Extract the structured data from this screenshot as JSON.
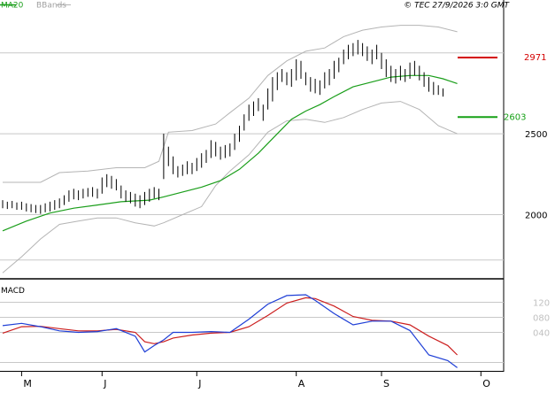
{
  "legend": {
    "ma_label": "MA20",
    "bands_label": "BBands",
    "copyright": "© TEC 27/9/2026 3:0 GMT"
  },
  "macd_panel": {
    "title": "MACD"
  },
  "levels": {
    "resistance_label": "2971",
    "support_label": "2603",
    "resistance_color": "#d40000",
    "support_color": "#16a116"
  },
  "price_axis": {
    "ticks": [
      "2500",
      "2000"
    ]
  },
  "macd_axis": {
    "ticks": [
      "120",
      "080",
      "040"
    ]
  },
  "months": [
    "M",
    "J",
    "J",
    "A",
    "S",
    "O"
  ],
  "colors": {
    "ma": "#1a9e1a",
    "bands": "#b4b4b4",
    "price_bars": "#000000",
    "macd": "#1f3fd6",
    "signal": "#cc1f1f",
    "grid": "#c8c8c8",
    "axis": "#000000"
  },
  "chart_data": [
    {
      "type": "line",
      "title": "",
      "ylim": [
        1620,
        3250
      ],
      "y_ticks": [
        2000,
        2500
      ],
      "levels": {
        "resistance": 2971,
        "support": 2603
      },
      "bars": [
        {
          "h": 2090,
          "l": 2040
        },
        {
          "h": 2080,
          "l": 2035
        },
        {
          "h": 2085,
          "l": 2040
        },
        {
          "h": 2075,
          "l": 2030
        },
        {
          "h": 2080,
          "l": 2030
        },
        {
          "h": 2070,
          "l": 2020
        },
        {
          "h": 2065,
          "l": 2015
        },
        {
          "h": 2060,
          "l": 2010
        },
        {
          "h": 2060,
          "l": 2005
        },
        {
          "h": 2070,
          "l": 2015
        },
        {
          "h": 2080,
          "l": 2020
        },
        {
          "h": 2090,
          "l": 2030
        },
        {
          "h": 2100,
          "l": 2040
        },
        {
          "h": 2120,
          "l": 2060
        },
        {
          "h": 2150,
          "l": 2080
        },
        {
          "h": 2160,
          "l": 2095
        },
        {
          "h": 2150,
          "l": 2090
        },
        {
          "h": 2160,
          "l": 2100
        },
        {
          "h": 2165,
          "l": 2110
        },
        {
          "h": 2170,
          "l": 2110
        },
        {
          "h": 2160,
          "l": 2100
        },
        {
          "h": 2230,
          "l": 2130
        },
        {
          "h": 2250,
          "l": 2170
        },
        {
          "h": 2240,
          "l": 2160
        },
        {
          "h": 2220,
          "l": 2150
        },
        {
          "h": 2180,
          "l": 2100
        },
        {
          "h": 2150,
          "l": 2080
        },
        {
          "h": 2140,
          "l": 2070
        },
        {
          "h": 2130,
          "l": 2050
        },
        {
          "h": 2120,
          "l": 2040
        },
        {
          "h": 2140,
          "l": 2060
        },
        {
          "h": 2160,
          "l": 2080
        },
        {
          "h": 2170,
          "l": 2100
        },
        {
          "h": 2160,
          "l": 2090
        },
        {
          "h": 2500,
          "l": 2220
        },
        {
          "h": 2420,
          "l": 2300
        },
        {
          "h": 2360,
          "l": 2250
        },
        {
          "h": 2300,
          "l": 2230
        },
        {
          "h": 2310,
          "l": 2240
        },
        {
          "h": 2330,
          "l": 2250
        },
        {
          "h": 2320,
          "l": 2250
        },
        {
          "h": 2350,
          "l": 2270
        },
        {
          "h": 2380,
          "l": 2290
        },
        {
          "h": 2400,
          "l": 2320
        },
        {
          "h": 2460,
          "l": 2350
        },
        {
          "h": 2450,
          "l": 2360
        },
        {
          "h": 2420,
          "l": 2340
        },
        {
          "h": 2430,
          "l": 2350
        },
        {
          "h": 2440,
          "l": 2360
        },
        {
          "h": 2500,
          "l": 2400
        },
        {
          "h": 2550,
          "l": 2450
        },
        {
          "h": 2620,
          "l": 2520
        },
        {
          "h": 2680,
          "l": 2580
        },
        {
          "h": 2700,
          "l": 2610
        },
        {
          "h": 2720,
          "l": 2640
        },
        {
          "h": 2680,
          "l": 2580
        },
        {
          "h": 2780,
          "l": 2650
        },
        {
          "h": 2850,
          "l": 2700
        },
        {
          "h": 2880,
          "l": 2770
        },
        {
          "h": 2900,
          "l": 2820
        },
        {
          "h": 2880,
          "l": 2800
        },
        {
          "h": 2900,
          "l": 2790
        },
        {
          "h": 2960,
          "l": 2830
        },
        {
          "h": 2950,
          "l": 2840
        },
        {
          "h": 2880,
          "l": 2800
        },
        {
          "h": 2850,
          "l": 2760
        },
        {
          "h": 2840,
          "l": 2750
        },
        {
          "h": 2830,
          "l": 2740
        },
        {
          "h": 2880,
          "l": 2780
        },
        {
          "h": 2900,
          "l": 2800
        },
        {
          "h": 2950,
          "l": 2840
        },
        {
          "h": 2970,
          "l": 2880
        },
        {
          "h": 3020,
          "l": 2930
        },
        {
          "h": 3050,
          "l": 2960
        },
        {
          "h": 3060,
          "l": 2980
        },
        {
          "h": 3080,
          "l": 2990
        },
        {
          "h": 3060,
          "l": 2980
        },
        {
          "h": 3040,
          "l": 2950
        },
        {
          "h": 3020,
          "l": 2930
        },
        {
          "h": 3050,
          "l": 2960
        },
        {
          "h": 3000,
          "l": 2900
        },
        {
          "h": 2960,
          "l": 2850
        },
        {
          "h": 2920,
          "l": 2820
        },
        {
          "h": 2900,
          "l": 2810
        },
        {
          "h": 2920,
          "l": 2830
        },
        {
          "h": 2900,
          "l": 2820
        },
        {
          "h": 2940,
          "l": 2840
        },
        {
          "h": 2950,
          "l": 2860
        },
        {
          "h": 2920,
          "l": 2830
        },
        {
          "h": 2880,
          "l": 2790
        },
        {
          "h": 2850,
          "l": 2760
        },
        {
          "h": 2820,
          "l": 2740
        },
        {
          "h": 2800,
          "l": 2740
        },
        {
          "h": 2780,
          "l": 2730
        }
      ],
      "ma20": [
        [
          0,
          1900
        ],
        [
          5,
          1960
        ],
        [
          10,
          2010
        ],
        [
          15,
          2040
        ],
        [
          20,
          2060
        ],
        [
          25,
          2080
        ],
        [
          28,
          2085
        ],
        [
          31,
          2090
        ],
        [
          34,
          2110
        ],
        [
          38,
          2140
        ],
        [
          42,
          2170
        ],
        [
          46,
          2210
        ],
        [
          50,
          2280
        ],
        [
          54,
          2380
        ],
        [
          58,
          2500
        ],
        [
          61,
          2590
        ],
        [
          64,
          2640
        ],
        [
          67,
          2680
        ],
        [
          70,
          2730
        ],
        [
          74,
          2790
        ],
        [
          78,
          2820
        ],
        [
          82,
          2850
        ],
        [
          86,
          2860
        ],
        [
          90,
          2860
        ],
        [
          93,
          2840
        ],
        [
          96,
          2810
        ]
      ],
      "band_upper": [
        [
          0,
          2200
        ],
        [
          8,
          2200
        ],
        [
          12,
          2260
        ],
        [
          18,
          2270
        ],
        [
          24,
          2290
        ],
        [
          30,
          2290
        ],
        [
          33,
          2330
        ],
        [
          35,
          2510
        ],
        [
          40,
          2520
        ],
        [
          45,
          2560
        ],
        [
          48,
          2630
        ],
        [
          52,
          2720
        ],
        [
          56,
          2860
        ],
        [
          60,
          2950
        ],
        [
          64,
          3010
        ],
        [
          68,
          3030
        ],
        [
          72,
          3100
        ],
        [
          76,
          3140
        ],
        [
          80,
          3160
        ],
        [
          84,
          3170
        ],
        [
          88,
          3170
        ],
        [
          92,
          3160
        ],
        [
          96,
          3130
        ]
      ],
      "band_lower": [
        [
          0,
          1640
        ],
        [
          4,
          1740
        ],
        [
          8,
          1850
        ],
        [
          12,
          1940
        ],
        [
          16,
          1960
        ],
        [
          20,
          1980
        ],
        [
          24,
          1980
        ],
        [
          28,
          1950
        ],
        [
          32,
          1930
        ],
        [
          34,
          1950
        ],
        [
          38,
          2000
        ],
        [
          42,
          2050
        ],
        [
          45,
          2180
        ],
        [
          48,
          2270
        ],
        [
          52,
          2370
        ],
        [
          56,
          2510
        ],
        [
          60,
          2580
        ],
        [
          64,
          2590
        ],
        [
          68,
          2570
        ],
        [
          72,
          2600
        ],
        [
          76,
          2650
        ],
        [
          80,
          2690
        ],
        [
          84,
          2700
        ],
        [
          88,
          2650
        ],
        [
          92,
          2550
        ],
        [
          96,
          2500
        ]
      ]
    },
    {
      "type": "line",
      "title": "MACD",
      "ylim": [
        -60,
        180
      ],
      "y_ticks": [
        120,
        80,
        40
      ],
      "series": [
        {
          "name": "",
          "values": [
            [
              0,
              58
            ],
            [
              4,
              64
            ],
            [
              8,
              55
            ],
            [
              12,
              44
            ],
            [
              16,
              40
            ],
            [
              20,
              42
            ],
            [
              24,
              50
            ],
            [
              28,
              30
            ],
            [
              30,
              -12
            ],
            [
              32,
              5
            ],
            [
              34,
              20
            ],
            [
              36,
              40
            ],
            [
              40,
              40
            ],
            [
              44,
              42
            ],
            [
              48,
              40
            ],
            [
              52,
              75
            ],
            [
              56,
              115
            ],
            [
              60,
              138
            ],
            [
              64,
              140
            ],
            [
              66,
              125
            ],
            [
              70,
              90
            ],
            [
              74,
              60
            ],
            [
              78,
              70
            ],
            [
              82,
              70
            ],
            [
              86,
              45
            ],
            [
              90,
              -20
            ],
            [
              94,
              -35
            ],
            [
              96,
              -54
            ]
          ]
        },
        {
          "name": "",
          "values": [
            [
              0,
              38
            ],
            [
              4,
              55
            ],
            [
              8,
              56
            ],
            [
              12,
              50
            ],
            [
              16,
              44
            ],
            [
              20,
              44
            ],
            [
              24,
              48
            ],
            [
              28,
              40
            ],
            [
              30,
              15
            ],
            [
              32,
              10
            ],
            [
              34,
              15
            ],
            [
              36,
              25
            ],
            [
              40,
              33
            ],
            [
              44,
              38
            ],
            [
              48,
              40
            ],
            [
              52,
              55
            ],
            [
              56,
              85
            ],
            [
              60,
              118
            ],
            [
              64,
              132
            ],
            [
              66,
              130
            ],
            [
              70,
              110
            ],
            [
              74,
              82
            ],
            [
              78,
              72
            ],
            [
              82,
              70
            ],
            [
              86,
              60
            ],
            [
              90,
              30
            ],
            [
              94,
              5
            ],
            [
              96,
              -20
            ]
          ]
        }
      ]
    }
  ]
}
